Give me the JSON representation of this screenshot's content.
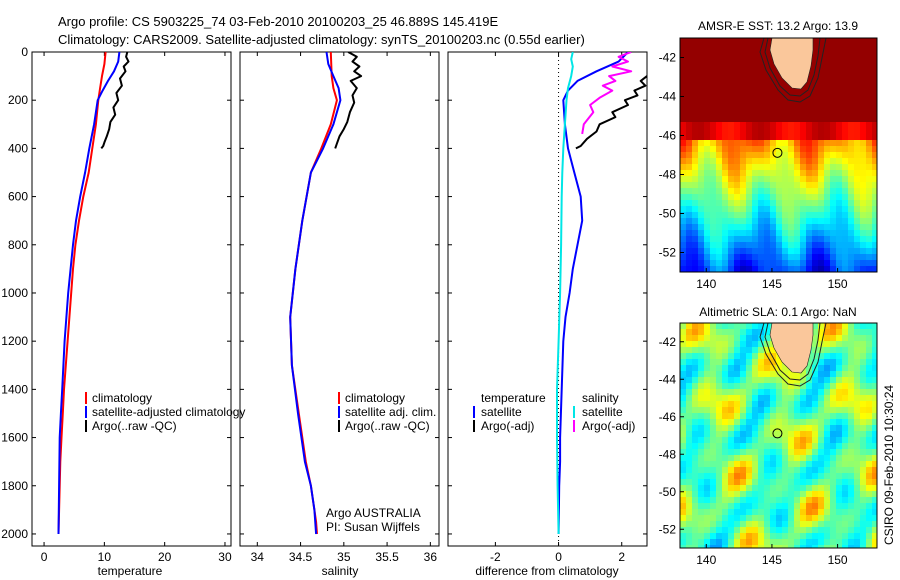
{
  "header": {
    "line1": "Argo profile: CS 5903225_74 03-Feb-2010 20100203_25 46.889S 145.419E",
    "line2": "Climatology: CARS2009. Satellite-adjusted climatology: synTS_20100203.nc (0.55d earlier)"
  },
  "side_label": "CSIRO 09-Feb-2010 10:30:24",
  "colors": {
    "climatology": "#ff0000",
    "satellite": "#0000ff",
    "argo": "#000000",
    "sal_satellite": "#00e6e6",
    "sal_argo": "#ff00ff",
    "marker": "#000000"
  },
  "chart_data": [
    {
      "type": "line",
      "panel": "temperature",
      "xlabel": "temperature",
      "ylabel": "",
      "xlim": [
        -2,
        31
      ],
      "ylim": [
        2050,
        0
      ],
      "y_reversed": true,
      "xticks": [
        0,
        10,
        20,
        30
      ],
      "yticks": [
        0,
        200,
        400,
        600,
        800,
        1000,
        1200,
        1400,
        1600,
        1800,
        2000
      ],
      "series": [
        {
          "name": "climatology",
          "color": "#ff0000",
          "x": [
            10.2,
            10.0,
            9.6,
            9.3,
            9.0,
            8.6,
            8.0,
            7.4,
            6.5,
            5.8,
            5.2,
            4.8,
            4.5,
            4.2,
            3.9,
            3.6,
            3.3,
            3.1,
            2.9,
            2.7,
            2.6,
            2.5,
            2.4
          ],
          "y": [
            0,
            50,
            100,
            150,
            200,
            300,
            400,
            500,
            600,
            700,
            800,
            900,
            1000,
            1100,
            1200,
            1300,
            1400,
            1500,
            1600,
            1700,
            1800,
            1900,
            2000
          ]
        },
        {
          "name": "satellite-adjusted climatology",
          "color": "#0000ff",
          "x": [
            12.5,
            12.3,
            11.6,
            10.6,
            9.7,
            8.9,
            8.3,
            7.5,
            6.8,
            6.0,
            5.3,
            4.8,
            4.4,
            4.0,
            3.7,
            3.4,
            3.2,
            3.0,
            2.8,
            2.6,
            2.5,
            2.4
          ],
          "y": [
            0,
            40,
            80,
            120,
            160,
            200,
            300,
            400,
            500,
            600,
            700,
            800,
            900,
            1000,
            1100,
            1200,
            1300,
            1400,
            1500,
            1600,
            1800,
            2000
          ]
        },
        {
          "name": "Argo(..raw -QC)",
          "color": "#000000",
          "x": [
            13.8,
            13.6,
            14.0,
            13.2,
            13.5,
            12.6,
            12.9,
            12.0,
            12.3,
            11.5,
            11.8,
            11.0,
            10.8,
            10.4,
            10.0,
            9.8,
            9.5
          ],
          "y": [
            0,
            20,
            40,
            60,
            80,
            110,
            140,
            170,
            200,
            230,
            260,
            290,
            320,
            350,
            375,
            390,
            400
          ]
        }
      ],
      "legend": [
        "climatology",
        "satellite-adjusted climatology",
        "Argo(..raw -QC)"
      ],
      "legend_position": "lower-right"
    },
    {
      "type": "line",
      "panel": "salinity",
      "xlabel": "salinity",
      "ylabel": "",
      "xlim": [
        33.8,
        36.1
      ],
      "ylim": [
        2050,
        0
      ],
      "y_reversed": true,
      "xticks": [
        34,
        34.5,
        35,
        35.5,
        36
      ],
      "series": [
        {
          "name": "climatology",
          "color": "#ff0000",
          "x": [
            34.85,
            34.86,
            34.88,
            34.92,
            34.85,
            34.74,
            34.62,
            34.52,
            34.44,
            34.38,
            34.4,
            34.48,
            34.56,
            34.62,
            34.66,
            34.68,
            34.69
          ],
          "y": [
            0,
            100,
            150,
            200,
            300,
            400,
            500,
            700,
            900,
            1100,
            1300,
            1500,
            1700,
            1800,
            1900,
            1950,
            2000
          ]
        },
        {
          "name": "satellite adj. clim.",
          "color": "#0000ff",
          "x": [
            34.8,
            34.82,
            34.88,
            34.94,
            34.96,
            34.88,
            34.76,
            34.62,
            34.52,
            34.44,
            34.38,
            34.4,
            34.47,
            34.55,
            34.62,
            34.66,
            34.68
          ],
          "y": [
            0,
            50,
            100,
            150,
            200,
            300,
            400,
            500,
            700,
            900,
            1100,
            1300,
            1500,
            1700,
            1800,
            1900,
            2000
          ]
        },
        {
          "name": "Argo(..raw -QC)",
          "color": "#000000",
          "x": [
            35.05,
            35.15,
            35.1,
            35.18,
            35.12,
            35.2,
            35.08,
            35.15,
            35.1,
            35.12,
            35.07,
            35.04,
            35.0,
            34.95,
            34.92,
            34.9
          ],
          "y": [
            0,
            20,
            40,
            60,
            80,
            100,
            120,
            150,
            180,
            210,
            250,
            290,
            320,
            350,
            380,
            400
          ]
        }
      ],
      "legend": [
        "climatology",
        "satellite adj. clim.",
        "Argo(..raw -QC)"
      ],
      "legend_position": "lower-right",
      "annotations": [
        "Argo AUSTRALIA",
        "PI: Susan Wijffels"
      ]
    },
    {
      "type": "line",
      "panel": "difference",
      "xlabel": "difference from climatology",
      "ylabel": "",
      "xlim": [
        -3.5,
        2.8
      ],
      "ylim": [
        2050,
        0
      ],
      "y_reversed": true,
      "xticks": [
        -2,
        0,
        2
      ],
      "xticklabels": [
        "-2",
        "0",
        "2"
      ],
      "zero_line": "dotted",
      "series": [
        {
          "name": "temperature satellite",
          "color": "#0000ff",
          "x": [
            2.2,
            1.9,
            1.2,
            0.6,
            0.3,
            0.15,
            0.2,
            0.3,
            0.5,
            0.7,
            0.75,
            0.6,
            0.45,
            0.35,
            0.22,
            0.15,
            0.1,
            0.05,
            0.05,
            0.02,
            0.0
          ],
          "y": [
            0,
            40,
            80,
            120,
            160,
            200,
            300,
            400,
            500,
            600,
            700,
            800,
            900,
            1000,
            1100,
            1200,
            1400,
            1600,
            1700,
            1800,
            2000
          ]
        },
        {
          "name": "temperature Argo(-adj)",
          "color": "#000000",
          "x": [
            2.8,
            2.6,
            2.75,
            2.4,
            2.5,
            2.1,
            2.2,
            1.7,
            1.8,
            1.3,
            1.2,
            0.9,
            0.7,
            0.55
          ],
          "y": [
            100,
            120,
            140,
            160,
            180,
            200,
            220,
            250,
            270,
            300,
            330,
            360,
            390,
            400
          ]
        },
        {
          "name": "salinity satellite",
          "color": "#00e6e6",
          "x": [
            0.45,
            0.4,
            0.45,
            0.4,
            0.3,
            0.25,
            0.2,
            0.15,
            0.12,
            0.1,
            0.08,
            0.05,
            0.0,
            -0.05,
            -0.05,
            -0.03,
            0.0
          ],
          "y": [
            0,
            30,
            60,
            100,
            150,
            200,
            300,
            400,
            500,
            600,
            800,
            1000,
            1200,
            1400,
            1600,
            1800,
            2000
          ]
        },
        {
          "name": "salinity Argo(-adj)",
          "color": "#ff00ff",
          "x": [
            2.3,
            1.9,
            2.2,
            1.7,
            2.3,
            1.6,
            1.8,
            1.4,
            1.7,
            1.3,
            1.0,
            1.1,
            0.8,
            0.75
          ],
          "y": [
            0,
            20,
            40,
            60,
            80,
            100,
            120,
            140,
            160,
            190,
            220,
            250,
            300,
            340
          ]
        }
      ],
      "legend": {
        "temperature_title": "temperature",
        "salinity_title": "salinity",
        "temperature": [
          "satellite",
          "Argo(-adj)"
        ],
        "salinity": [
          "satellite",
          "Argo(-adj)"
        ]
      },
      "legend_position": "lower-center"
    },
    {
      "type": "heatmap",
      "panel": "sst_map",
      "title": "AMSR-E SST: 13.2  Argo: 13.9",
      "xlim": [
        138,
        153
      ],
      "ylim": [
        -53,
        -41
      ],
      "xticks": [
        140,
        145,
        150
      ],
      "yticks": [
        -42,
        -44,
        -46,
        -48,
        -50,
        -52
      ],
      "profile_location": {
        "lon": 145.419,
        "lat": -46.889
      },
      "land": "Tasmania"
    },
    {
      "type": "heatmap",
      "panel": "sla_map",
      "title": "Altimetric SLA: 0.1  Argo: NaN",
      "xlim": [
        138,
        153
      ],
      "ylim": [
        -53,
        -41
      ],
      "xticks": [
        140,
        145,
        150
      ],
      "yticks": [
        -42,
        -44,
        -46,
        -48,
        -50,
        -52
      ],
      "profile_location": {
        "lon": 145.419,
        "lat": -46.889
      },
      "land": "Tasmania"
    }
  ]
}
